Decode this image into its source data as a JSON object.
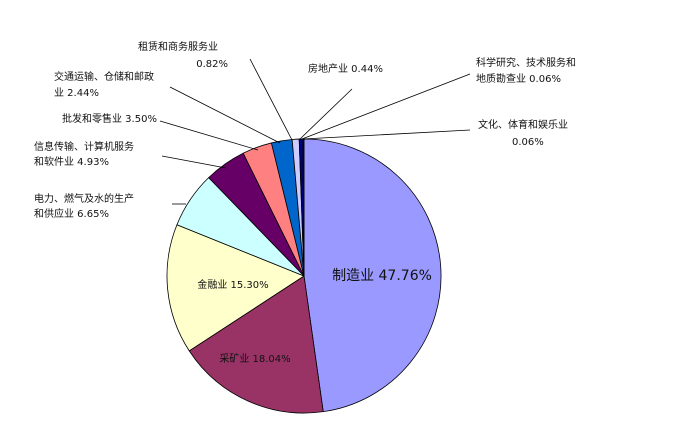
{
  "chart_data": {
    "type": "pie",
    "title": "",
    "slices": [
      {
        "label": "制造业",
        "value_text": "47.76%",
        "value": 47.76,
        "color": "#9999ff"
      },
      {
        "label": "采矿业",
        "value_text": "18.04%",
        "value": 18.04,
        "color": "#993366"
      },
      {
        "label": "金融业",
        "value_text": "15.30%",
        "value": 15.3,
        "color": "#ffffcc"
      },
      {
        "label": "电力、燃气及水的生产和供应业",
        "value_text": "6.65%",
        "value": 6.65,
        "color": "#ccffff"
      },
      {
        "label": "信息传输、计算机服务和软件业",
        "value_text": "4.93%",
        "value": 4.93,
        "color": "#660066"
      },
      {
        "label": "批发和零售业",
        "value_text": "3.50%",
        "value": 3.5,
        "color": "#ff8080"
      },
      {
        "label": "交通运输、仓储和邮政业",
        "value_text": "2.44%",
        "value": 2.44,
        "color": "#0066cc"
      },
      {
        "label": "租赁和商务服务业",
        "value_text": "0.82%",
        "value": 0.82,
        "color": "#ccccff"
      },
      {
        "label": "房地产业",
        "value_text": "0.44%",
        "value": 0.44,
        "color": "#000080"
      },
      {
        "label": "科学研究、技术服务和地质勘查业",
        "value_text": "0.06%",
        "value": 0.06,
        "color": "#ff00ff"
      },
      {
        "label": "文化、体育和娱乐业",
        "value_text": "0.06%",
        "value": 0.06,
        "color": "#ffff00"
      }
    ],
    "label_lines": [
      [
        "制造业 47.76%"
      ],
      [
        "采矿业 18.04%"
      ],
      [
        "金融业 15.30%"
      ],
      [
        "电力、燃气及水的生产",
        "和供应业 6.65%"
      ],
      [
        "信息传输、计算机服务",
        "和软件业 4.93%"
      ],
      [
        "批发和零售业 3.50%"
      ],
      [
        "交通运输、仓储和邮政",
        "业 2.44%"
      ],
      [
        "租赁和商务服务业",
        "0.82%"
      ],
      [
        "房地产业 0.44%"
      ],
      [
        "科学研究、技术服务和",
        "地质勘查业 0.06%"
      ],
      [
        "文化、体育和娱乐业",
        "0.06%"
      ]
    ],
    "legend": "none"
  }
}
